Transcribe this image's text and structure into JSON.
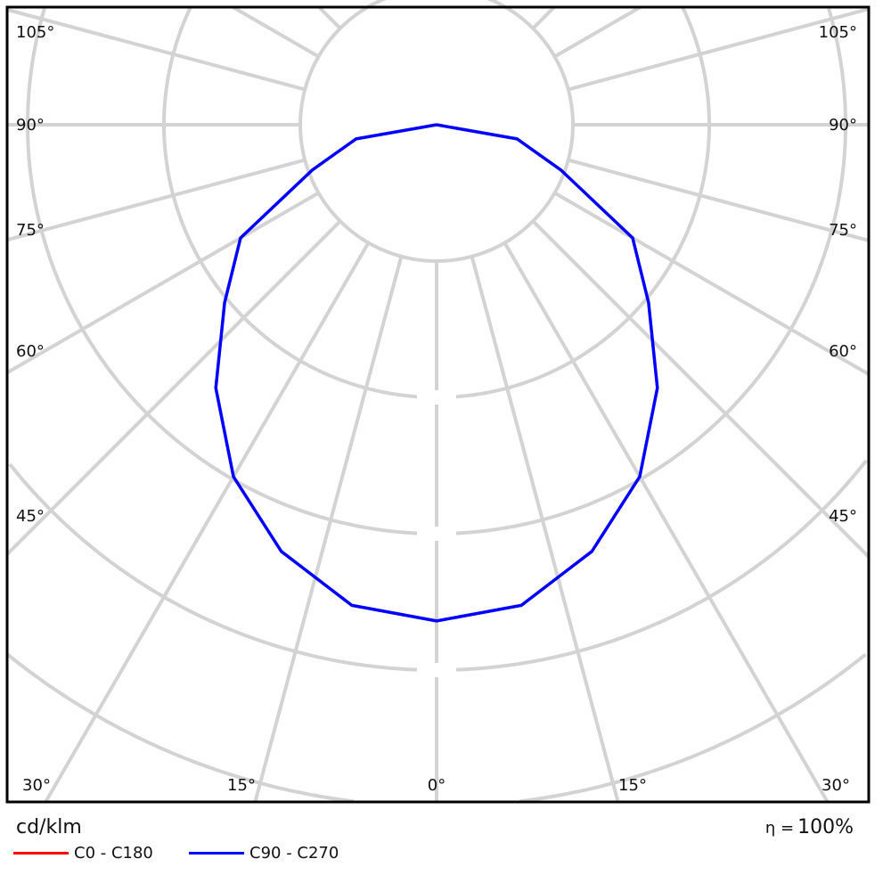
{
  "chart_data": {
    "type": "polar",
    "unit_label": "cd/klm",
    "efficiency_symbol": "η =",
    "efficiency": "100%",
    "angle_labels_left": [
      "105°",
      "90°",
      "75°",
      "60°",
      "45°"
    ],
    "angle_labels_right": [
      "105°",
      "90°",
      "75°",
      "60°",
      "45°"
    ],
    "angle_labels_bottom": [
      "30°",
      "15°",
      "0°",
      "15°",
      "30°"
    ],
    "angle_grid_step_deg": 15,
    "radial_grid_step": 1,
    "radial_grid_labels": [],
    "angles_deg": [
      0,
      10,
      20,
      30,
      40,
      50,
      60,
      70,
      80,
      90
    ],
    "series": [
      {
        "name": "C0 - C180",
        "color": "#ff0000",
        "values": [
          3.64,
          3.58,
          3.33,
          2.98,
          2.52,
          2.03,
          1.66,
          0.97,
          0.6,
          0
        ]
      },
      {
        "name": "C90 - C270",
        "color": "#0000ff",
        "values": [
          3.64,
          3.58,
          3.33,
          2.98,
          2.52,
          2.03,
          1.66,
          0.97,
          0.6,
          0
        ]
      }
    ],
    "grid_color": "#d3d3d3",
    "legend_position": "bottom-left"
  }
}
